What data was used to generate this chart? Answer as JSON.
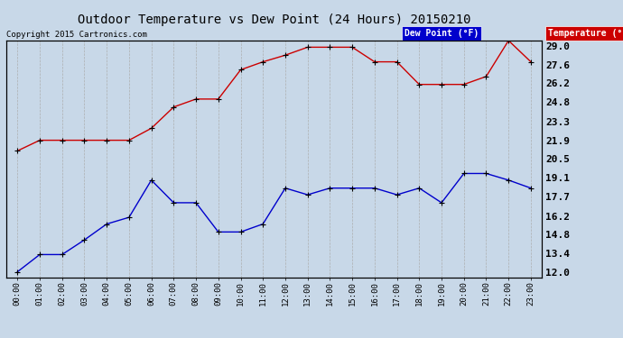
{
  "title": "Outdoor Temperature vs Dew Point (24 Hours) 20150210",
  "copyright": "Copyright 2015 Cartronics.com",
  "background_color": "#c8d8e8",
  "plot_bg_color": "#c8d8e8",
  "grid_color": "#aaaaaa",
  "x_labels": [
    "00:00",
    "01:00",
    "02:00",
    "03:00",
    "04:00",
    "05:00",
    "06:00",
    "07:00",
    "08:00",
    "09:00",
    "10:00",
    "11:00",
    "12:00",
    "13:00",
    "14:00",
    "15:00",
    "16:00",
    "17:00",
    "18:00",
    "19:00",
    "20:00",
    "21:00",
    "22:00",
    "23:00"
  ],
  "y_ticks": [
    12.0,
    13.4,
    14.8,
    16.2,
    17.7,
    19.1,
    20.5,
    21.9,
    23.3,
    24.8,
    26.2,
    27.6,
    29.0
  ],
  "temp_color": "#cc0000",
  "dew_color": "#0000cc",
  "marker_color": "#000000",
  "temp_data": [
    21.1,
    21.9,
    21.9,
    21.9,
    21.9,
    21.9,
    22.8,
    24.4,
    25.0,
    25.0,
    27.2,
    27.8,
    28.3,
    28.9,
    28.9,
    28.9,
    27.8,
    27.8,
    26.1,
    26.1,
    26.1,
    26.7,
    29.4,
    27.8
  ],
  "dew_data": [
    12.0,
    13.3,
    13.3,
    14.4,
    15.6,
    16.1,
    18.9,
    17.2,
    17.2,
    15.0,
    15.0,
    15.6,
    18.3,
    17.8,
    18.3,
    18.3,
    18.3,
    17.8,
    18.3,
    17.2,
    19.4,
    19.4,
    18.9,
    18.3
  ],
  "legend_dew_label": "Dew Point (°F)",
  "legend_temp_label": "Temperature (°F)"
}
